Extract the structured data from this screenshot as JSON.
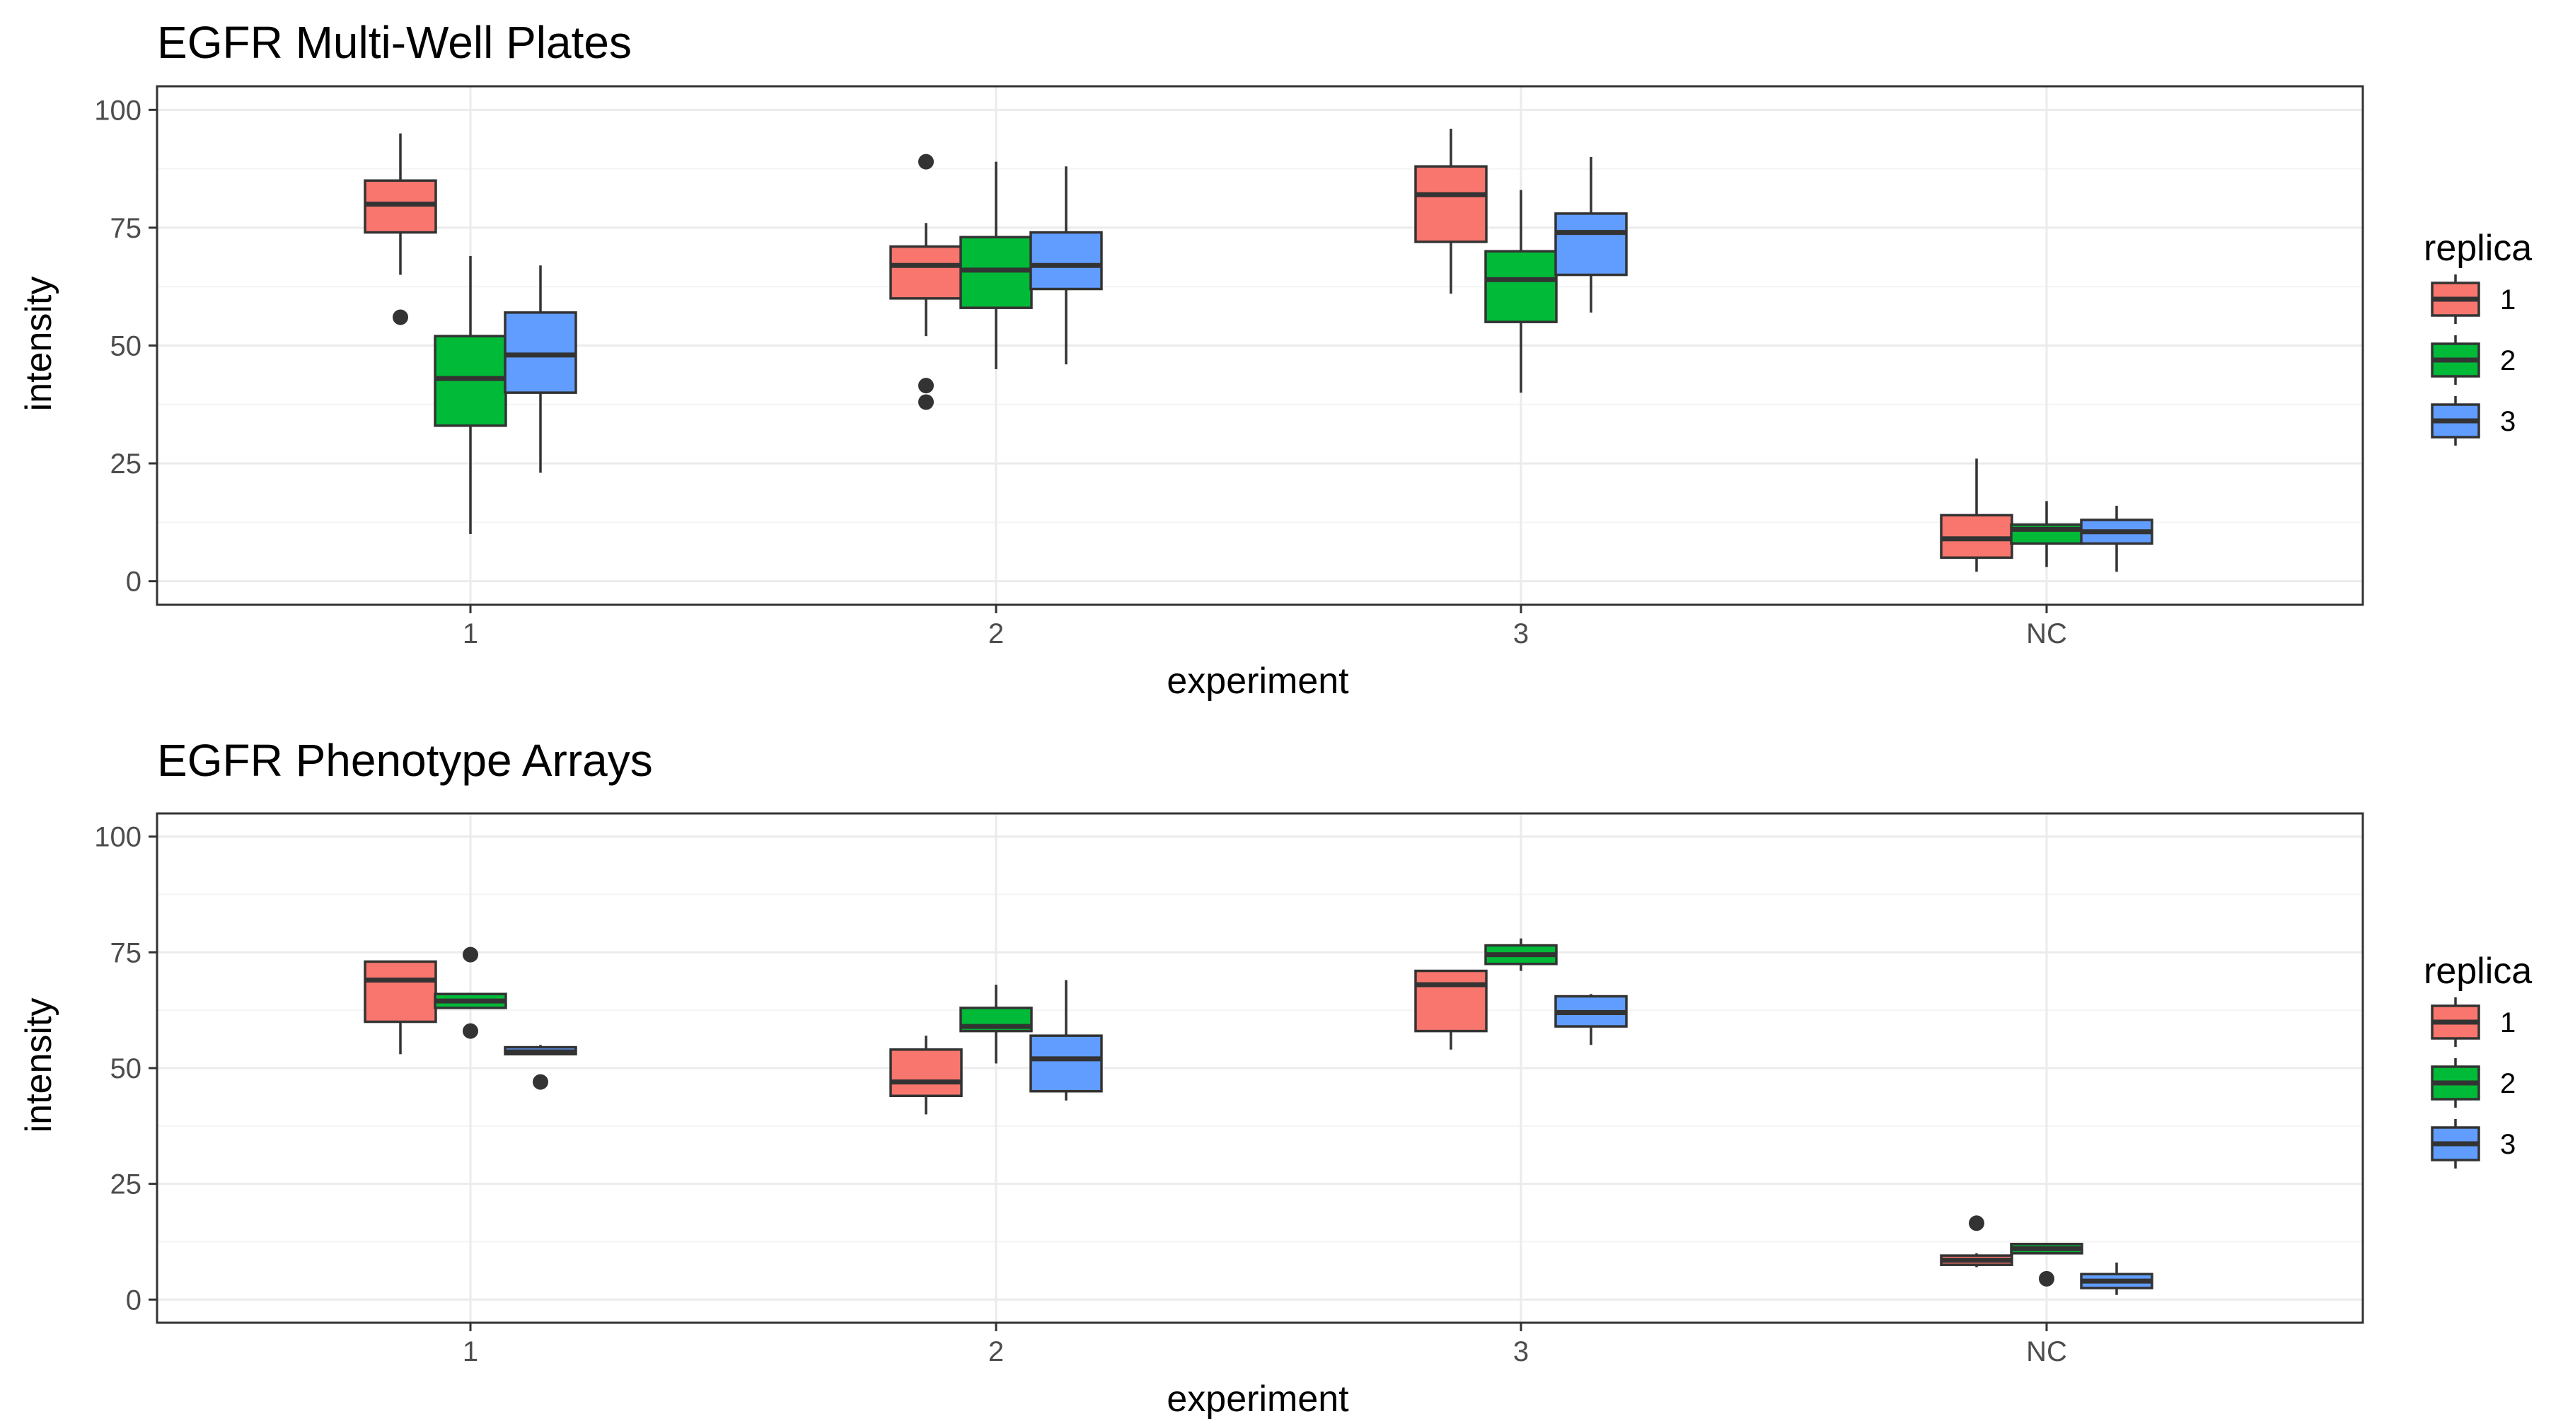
{
  "colors": {
    "1": "#F8766D",
    "2": "#00BA38",
    "3": "#619CFF"
  },
  "chart_data": [
    {
      "type": "boxplot",
      "title": "EGFR Multi-Well Plates",
      "xlabel": "experiment",
      "ylabel": "intensity",
      "ylim": [
        -5,
        105
      ],
      "yticks": [
        0,
        25,
        50,
        75,
        100
      ],
      "categories": [
        "1",
        "2",
        "3",
        "NC"
      ],
      "legend": {
        "title": "replica",
        "entries": [
          "1",
          "2",
          "3"
        ],
        "position": "right"
      },
      "series": [
        {
          "name": "1",
          "boxes": [
            {
              "category": "1",
              "lower": 65,
              "q1": 74,
              "median": 80,
              "q3": 85,
              "upper": 95,
              "outliers": [
                56
              ]
            },
            {
              "category": "2",
              "lower": 52,
              "q1": 60,
              "median": 67,
              "q3": 71,
              "upper": 76,
              "outliers": [
                89,
                41.5,
                38
              ]
            },
            {
              "category": "3",
              "lower": 61,
              "q1": 72,
              "median": 82,
              "q3": 88,
              "upper": 96,
              "outliers": []
            },
            {
              "category": "NC",
              "lower": 2,
              "q1": 5,
              "median": 9,
              "q3": 14,
              "upper": 26,
              "outliers": []
            }
          ]
        },
        {
          "name": "2",
          "boxes": [
            {
              "category": "1",
              "lower": 10,
              "q1": 33,
              "median": 43,
              "q3": 52,
              "upper": 69,
              "outliers": []
            },
            {
              "category": "2",
              "lower": 45,
              "q1": 58,
              "median": 66,
              "q3": 73,
              "upper": 89,
              "outliers": []
            },
            {
              "category": "3",
              "lower": 40,
              "q1": 55,
              "median": 64,
              "q3": 70,
              "upper": 83,
              "outliers": []
            },
            {
              "category": "NC",
              "lower": 3,
              "q1": 8,
              "median": 11,
              "q3": 12,
              "upper": 17,
              "outliers": []
            }
          ]
        },
        {
          "name": "3",
          "boxes": [
            {
              "category": "1",
              "lower": 23,
              "q1": 40,
              "median": 48,
              "q3": 57,
              "upper": 67,
              "outliers": []
            },
            {
              "category": "2",
              "lower": 46,
              "q1": 62,
              "median": 67,
              "q3": 74,
              "upper": 88,
              "outliers": []
            },
            {
              "category": "3",
              "lower": 57,
              "q1": 65,
              "median": 74,
              "q3": 78,
              "upper": 90,
              "outliers": []
            },
            {
              "category": "NC",
              "lower": 2,
              "q1": 8,
              "median": 10.5,
              "q3": 13,
              "upper": 16,
              "outliers": []
            }
          ]
        }
      ]
    },
    {
      "type": "boxplot",
      "title": "EGFR Phenotype Arrays",
      "xlabel": "experiment",
      "ylabel": "intensity",
      "ylim": [
        -5,
        105
      ],
      "yticks": [
        0,
        25,
        50,
        75,
        100
      ],
      "categories": [
        "1",
        "2",
        "3",
        "NC"
      ],
      "legend": {
        "title": "replica",
        "entries": [
          "1",
          "2",
          "3"
        ],
        "position": "right"
      },
      "series": [
        {
          "name": "1",
          "boxes": [
            {
              "category": "1",
              "lower": 53,
              "q1": 60,
              "median": 69,
              "q3": 73,
              "upper": 73,
              "outliers": []
            },
            {
              "category": "2",
              "lower": 40,
              "q1": 44,
              "median": 47,
              "q3": 54,
              "upper": 57,
              "outliers": []
            },
            {
              "category": "3",
              "lower": 54,
              "q1": 58,
              "median": 68,
              "q3": 71,
              "upper": 71,
              "outliers": []
            },
            {
              "category": "NC",
              "lower": 7,
              "q1": 7.5,
              "median": 8.5,
              "q3": 9.5,
              "upper": 10,
              "outliers": [
                16.5
              ]
            }
          ]
        },
        {
          "name": "2",
          "boxes": [
            {
              "category": "1",
              "lower": 63,
              "q1": 63,
              "median": 64.5,
              "q3": 66,
              "upper": 66,
              "outliers": [
                74.5,
                58
              ]
            },
            {
              "category": "2",
              "lower": 51,
              "q1": 58,
              "median": 59,
              "q3": 63,
              "upper": 68,
              "outliers": []
            },
            {
              "category": "3",
              "lower": 71,
              "q1": 72.5,
              "median": 74.5,
              "q3": 76.5,
              "upper": 78,
              "outliers": []
            },
            {
              "category": "NC",
              "lower": 10,
              "q1": 10,
              "median": 11,
              "q3": 12,
              "upper": 12,
              "outliers": [
                4.5
              ]
            }
          ]
        },
        {
          "name": "3",
          "boxes": [
            {
              "category": "1",
              "lower": 53,
              "q1": 53,
              "median": 53.5,
              "q3": 54.5,
              "upper": 55,
              "outliers": [
                47
              ]
            },
            {
              "category": "2",
              "lower": 43,
              "q1": 45,
              "median": 52,
              "q3": 57,
              "upper": 69,
              "outliers": []
            },
            {
              "category": "3",
              "lower": 55,
              "q1": 59,
              "median": 62,
              "q3": 65.5,
              "upper": 66,
              "outliers": []
            },
            {
              "category": "NC",
              "lower": 1,
              "q1": 2.5,
              "median": 4,
              "q3": 5.5,
              "upper": 8,
              "outliers": []
            }
          ]
        }
      ]
    }
  ]
}
